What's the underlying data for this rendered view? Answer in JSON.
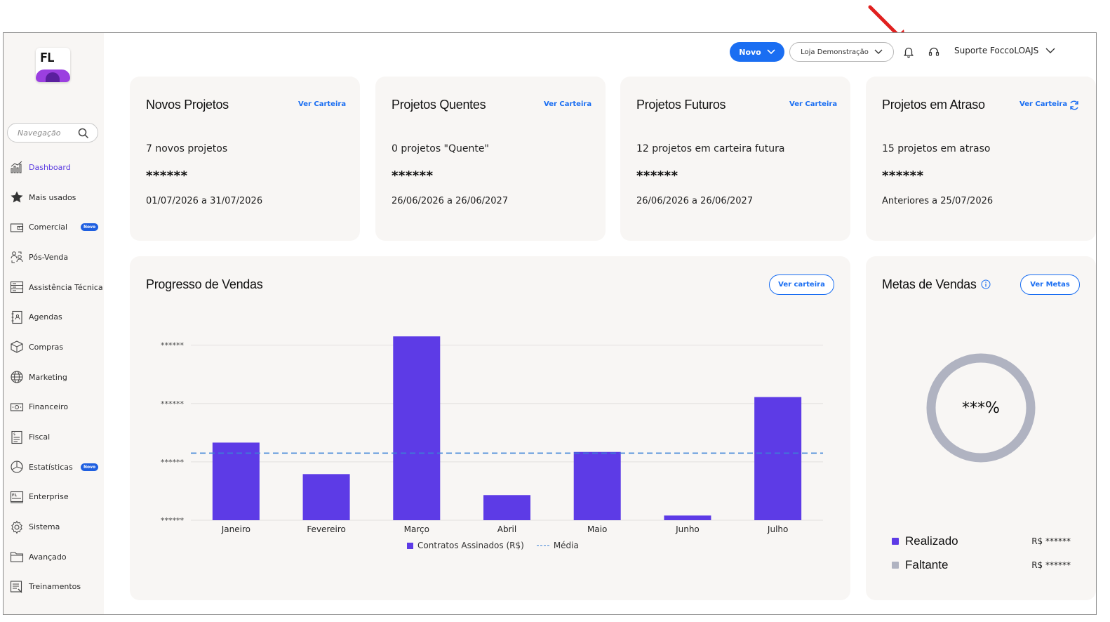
{
  "header": {
    "novo_label": "Novo",
    "store_label": "Loja Demonstração",
    "user_label": "Suporte FoccoLOAJS"
  },
  "logo": {
    "text": "FL"
  },
  "sidebar": {
    "search_placeholder": "Navegação",
    "items": [
      {
        "label": "Dashboard",
        "icon": "chart-icon",
        "active": true
      },
      {
        "label": "Mais usados",
        "icon": "star-icon"
      },
      {
        "label": "Comercial",
        "icon": "wallet-icon",
        "badge": "Novo"
      },
      {
        "label": "Pós-Venda",
        "icon": "people-exchange-icon"
      },
      {
        "label": "Assistência Técnica",
        "icon": "server-icon"
      },
      {
        "label": "Agendas",
        "icon": "notebook-icon"
      },
      {
        "label": "Compras",
        "icon": "box-icon"
      },
      {
        "label": "Marketing",
        "icon": "globe-icon"
      },
      {
        "label": "Financeiro",
        "icon": "money-icon"
      },
      {
        "label": "Fiscal",
        "icon": "receipt-icon"
      },
      {
        "label": "Estatísticas",
        "icon": "pie-icon",
        "badge": "Novo"
      },
      {
        "label": "Enterprise",
        "icon": "fl-window-icon"
      },
      {
        "label": "Sistema",
        "icon": "gear-icon"
      },
      {
        "label": "Avançado",
        "icon": "folder-icon"
      },
      {
        "label": "Treinamentos",
        "icon": "training-icon"
      }
    ]
  },
  "kpis": [
    {
      "title": "Novos Projetos",
      "link": "Ver Carteira",
      "count": "7 novos projetos",
      "masked": "******",
      "range": "01/07/2026 a 31/07/2026"
    },
    {
      "title": "Projetos Quentes",
      "link": "Ver Carteira",
      "count": "0 projetos \"Quente\"",
      "masked": "******",
      "range": "26/06/2026 a 26/06/2027"
    },
    {
      "title": "Projetos Futuros",
      "link": "Ver Carteira",
      "count": "12 projetos em carteira futura",
      "masked": "******",
      "range": "26/06/2026 a 26/06/2027"
    },
    {
      "title": "Projetos em Atraso",
      "link": "Ver Carteira",
      "count": "15 projetos em atraso",
      "masked": "******",
      "range": "Anteriores a 25/07/2026"
    }
  ],
  "sales_progress": {
    "title": "Progresso de Vendas",
    "button": "Ver carteira",
    "legend_bar": "Contratos Assinados (R$)",
    "legend_line": "Média"
  },
  "chart_data": {
    "type": "bar",
    "categories": [
      "Janeiro",
      "Fevereiro",
      "Março",
      "Abril",
      "Maio",
      "Junho",
      "Julho"
    ],
    "series": [
      {
        "name": "Contratos Assinados (R$)",
        "values": [
          1.33,
          0.79,
          3.15,
          0.43,
          1.17,
          0.08,
          2.11
        ],
        "color": "#5d3be6"
      }
    ],
    "average": 1.15,
    "average_name": "Média",
    "average_color": "#3b82d6",
    "ylim": [
      0,
      3.2
    ],
    "yticks": [
      0,
      1,
      2,
      3
    ],
    "ytick_labels": [
      "******",
      "******",
      "******",
      "******"
    ],
    "values_note": "relative bar heights; axis values masked in original",
    "grid": true,
    "legend_position": "bottom"
  },
  "goals": {
    "title": "Metas de Vendas",
    "button": "Ver Metas",
    "donut_label": "***%",
    "rows": [
      {
        "name": "Realizado",
        "value": "R$ ******",
        "color": "#5d3be6"
      },
      {
        "name": "Faltante",
        "value": "R$ ******",
        "color": "#b0b3c1"
      }
    ],
    "ring_color": "#b0b3c1"
  }
}
